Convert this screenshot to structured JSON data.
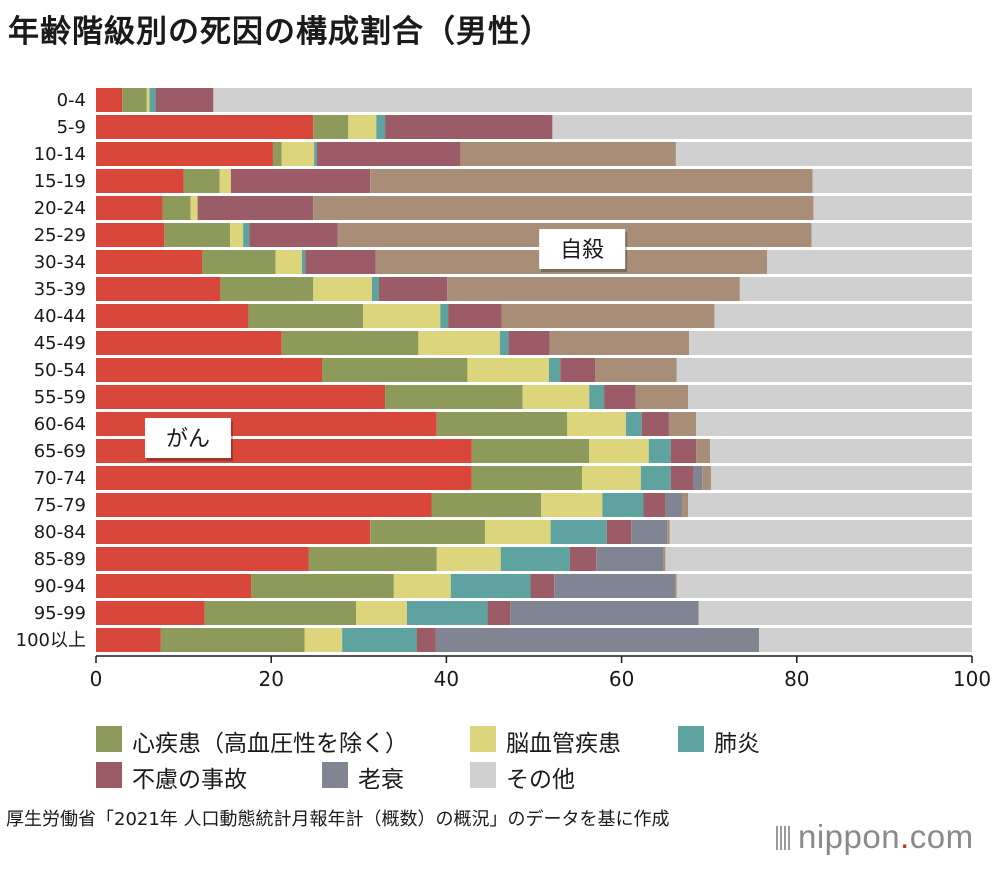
{
  "title": "年齢階級別の死因の構成割合（男性）",
  "chart_data": {
    "type": "bar",
    "orientation": "horizontal",
    "stacked": true,
    "categories": [
      "0-4",
      "5-9",
      "10-14",
      "15-19",
      "20-24",
      "25-29",
      "30-34",
      "35-39",
      "40-44",
      "45-49",
      "50-54",
      "55-59",
      "60-64",
      "65-69",
      "70-74",
      "75-79",
      "80-84",
      "85-89",
      "90-94",
      "95-99",
      "100以上"
    ],
    "series": [
      {
        "name": "がん",
        "color": "#d9473a",
        "values": [
          3.0,
          24.8,
          20.2,
          10.0,
          7.6,
          7.8,
          12.1,
          14.2,
          17.4,
          21.2,
          25.8,
          33.0,
          38.9,
          42.9,
          42.9,
          38.3,
          31.3,
          24.3,
          17.7,
          12.4,
          7.4
        ]
      },
      {
        "name": "心疾患（高血圧性を除く）",
        "color": "#8d9a5b",
        "values": [
          2.8,
          4.0,
          1.0,
          4.1,
          3.2,
          7.5,
          8.4,
          10.6,
          13.1,
          15.6,
          16.6,
          15.7,
          14.9,
          13.4,
          12.6,
          12.5,
          13.1,
          14.6,
          16.3,
          17.3,
          16.4
        ]
      },
      {
        "name": "脳血管疾患",
        "color": "#dcd57c",
        "values": [
          0.3,
          3.2,
          3.7,
          1.3,
          0.8,
          1.5,
          3.0,
          6.7,
          8.8,
          9.3,
          9.3,
          7.6,
          6.7,
          6.8,
          6.7,
          7.0,
          7.5,
          7.3,
          6.5,
          5.8,
          4.3
        ]
      },
      {
        "name": "肺炎",
        "color": "#5fa3a0",
        "values": [
          0.7,
          1.0,
          0.3,
          0.0,
          0.0,
          0.7,
          0.4,
          0.8,
          0.9,
          1.0,
          1.3,
          1.7,
          1.8,
          2.5,
          3.4,
          4.7,
          6.4,
          7.9,
          9.1,
          9.2,
          8.5
        ]
      },
      {
        "name": "不慮の事故",
        "color": "#9b5c68",
        "values": [
          6.6,
          19.1,
          16.4,
          15.9,
          13.2,
          10.1,
          8.0,
          7.8,
          6.1,
          4.7,
          4.0,
          3.6,
          3.1,
          2.9,
          2.6,
          2.5,
          2.8,
          3.0,
          2.7,
          2.6,
          2.2
        ]
      },
      {
        "name": "老衰",
        "color": "#818593",
        "values": [
          0.0,
          0.0,
          0.0,
          0.0,
          0.0,
          0.0,
          0.0,
          0.0,
          0.0,
          0.0,
          0.0,
          0.0,
          0.0,
          0.0,
          1.0,
          1.9,
          4.1,
          7.7,
          13.8,
          21.5,
          36.9
        ]
      },
      {
        "name": "自殺",
        "color": "#a88e77",
        "values": [
          0.0,
          0.0,
          24.6,
          50.5,
          57.1,
          54.1,
          44.7,
          33.4,
          24.3,
          15.9,
          9.3,
          6.0,
          3.1,
          1.6,
          1.0,
          0.7,
          0.3,
          0.2,
          0.2,
          0.0,
          0.0
        ]
      },
      {
        "name": "その他",
        "color": "#d0d0d0",
        "values": [
          86.6,
          47.9,
          33.8,
          18.2,
          18.1,
          18.3,
          23.4,
          26.5,
          29.4,
          32.3,
          33.7,
          32.4,
          31.5,
          29.9,
          29.8,
          32.4,
          34.5,
          35.0,
          33.7,
          31.2,
          24.3
        ]
      }
    ],
    "xlim": [
      0,
      100
    ],
    "xticks": [
      0,
      20,
      40,
      60,
      80,
      100
    ],
    "xunit": "(%)",
    "annotations": [
      {
        "text": "がん",
        "series": "がん"
      },
      {
        "text": "自殺",
        "series": "自殺"
      }
    ]
  },
  "legend": [
    {
      "name": "心疾患（高血圧性を除く）",
      "color": "#8d9a5b"
    },
    {
      "name": "脳血管疾患",
      "color": "#dcd57c"
    },
    {
      "name": "肺炎",
      "color": "#5fa3a0"
    },
    {
      "name": "不慮の事故",
      "color": "#9b5c68"
    },
    {
      "name": "老衰",
      "color": "#818593"
    },
    {
      "name": "その他",
      "color": "#d0d0d0"
    }
  ],
  "source": "厚生労働省「2021年 人口動態統計月報年計（概数）の概況」のデータを基に作成",
  "logo": {
    "name": "nippon",
    "dot": ".",
    "tld": "com"
  }
}
